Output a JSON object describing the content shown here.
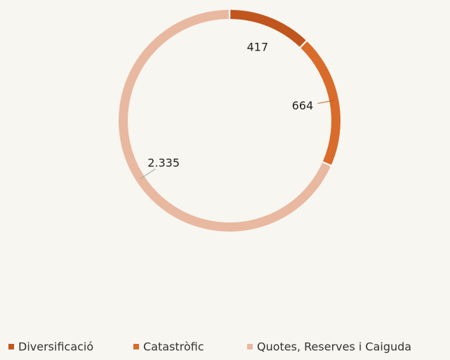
{
  "chart_data": {
    "type": "donut",
    "categories": [
      "Diversificació",
      "Catastròfic",
      "Quotes, Reserves i Caiguda"
    ],
    "values": [
      417,
      664,
      2335
    ],
    "value_labels": [
      "417",
      "664",
      "2.335"
    ],
    "colors": [
      "#c0561e",
      "#d96b2b",
      "#e9b8a0"
    ],
    "legend": "bottom"
  }
}
